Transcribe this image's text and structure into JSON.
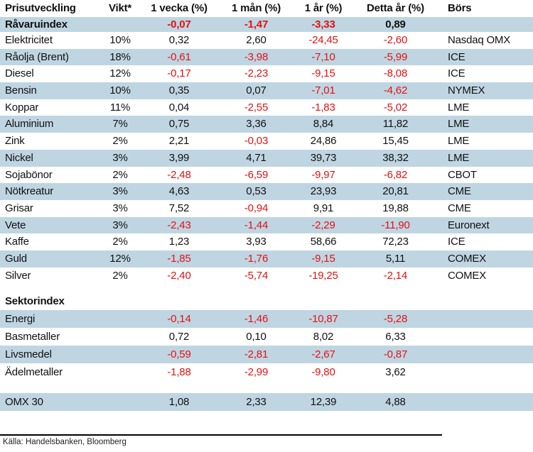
{
  "table": {
    "columns": {
      "label": "Prisutveckling",
      "vikt": "Vikt*",
      "week1": "1 vecka (%)",
      "month1": "1 mån (%)",
      "year1": "1 år (%)",
      "ytd": "Detta år (%)",
      "bors": "Börs"
    },
    "commodity_rows": [
      {
        "label": "Råvaruindex",
        "vikt": "",
        "w": "-0,07",
        "m": "-1,47",
        "y": "-3,33",
        "ytd": "0,89",
        "bors": "",
        "shaded": true,
        "bold": true
      },
      {
        "label": "Elektricitet",
        "vikt": "10%",
        "w": "0,32",
        "m": "2,60",
        "y": "-24,45",
        "ytd": "-2,60",
        "bors": "Nasdaq OMX",
        "shaded": false
      },
      {
        "label": "Råolja (Brent)",
        "vikt": "18%",
        "w": "-0,61",
        "m": "-3,98",
        "y": "-7,10",
        "ytd": "-5,99",
        "bors": "ICE",
        "shaded": true
      },
      {
        "label": "Diesel",
        "vikt": "12%",
        "w": "-0,17",
        "m": "-2,23",
        "y": "-9,15",
        "ytd": "-8,08",
        "bors": "ICE",
        "shaded": false
      },
      {
        "label": "Bensin",
        "vikt": "10%",
        "w": "0,35",
        "m": "0,07",
        "y": "-7,01",
        "ytd": "-4,62",
        "bors": "NYMEX",
        "shaded": true
      },
      {
        "label": "Koppar",
        "vikt": "11%",
        "w": "0,04",
        "m": "-2,55",
        "y": "-1,83",
        "ytd": "-5,02",
        "bors": "LME",
        "shaded": false
      },
      {
        "label": "Aluminium",
        "vikt": "7%",
        "w": "0,75",
        "m": "3,36",
        "y": "8,84",
        "ytd": "11,82",
        "bors": "LME",
        "shaded": true
      },
      {
        "label": "Zink",
        "vikt": "2%",
        "w": "2,21",
        "m": "-0,03",
        "y": "24,86",
        "ytd": "15,45",
        "bors": "LME",
        "shaded": false
      },
      {
        "label": "Nickel",
        "vikt": "3%",
        "w": "3,99",
        "m": "4,71",
        "y": "39,73",
        "ytd": "38,32",
        "bors": "LME",
        "shaded": true
      },
      {
        "label": "Sojabönor",
        "vikt": "2%",
        "w": "-2,48",
        "m": "-6,59",
        "y": "-9,97",
        "ytd": "-6,82",
        "bors": "CBOT",
        "shaded": false
      },
      {
        "label": "Nötkreatur",
        "vikt": "3%",
        "w": "4,63",
        "m": "0,53",
        "y": "23,93",
        "ytd": "20,81",
        "bors": "CME",
        "shaded": true
      },
      {
        "label": "Grisar",
        "vikt": "3%",
        "w": "7,52",
        "m": "-0,94",
        "y": "9,91",
        "ytd": "19,88",
        "bors": "CME",
        "shaded": false
      },
      {
        "label": "Vete",
        "vikt": "3%",
        "w": "-2,43",
        "m": "-1,44",
        "y": "-2,29",
        "ytd": "-11,90",
        "bors": "Euronext",
        "shaded": true
      },
      {
        "label": "Kaffe",
        "vikt": "2%",
        "w": "1,23",
        "m": "3,93",
        "y": "58,66",
        "ytd": "72,23",
        "bors": "ICE",
        "shaded": false
      },
      {
        "label": "Guld",
        "vikt": "12%",
        "w": "-1,85",
        "m": "-1,76",
        "y": "-9,15",
        "ytd": "5,11",
        "bors": "COMEX",
        "shaded": true
      },
      {
        "label": "Silver",
        "vikt": "2%",
        "w": "-2,40",
        "m": "-5,74",
        "y": "-19,25",
        "ytd": "-2,14",
        "bors": "COMEX",
        "shaded": false
      }
    ],
    "sector_header": "Sektorindex",
    "sector_rows": [
      {
        "label": "Energi",
        "vikt": "",
        "w": "-0,14",
        "m": "-1,46",
        "y": "-10,87",
        "ytd": "-5,28",
        "bors": "",
        "shaded": true
      },
      {
        "label": "Basmetaller",
        "vikt": "",
        "w": "0,72",
        "m": "0,10",
        "y": "8,02",
        "ytd": "6,33",
        "bors": "",
        "shaded": false
      },
      {
        "label": "Livsmedel",
        "vikt": "",
        "w": "-0,59",
        "m": "-2,81",
        "y": "-2,67",
        "ytd": "-0,87",
        "bors": "",
        "shaded": true
      },
      {
        "label": "Ädelmetaller",
        "vikt": "",
        "w": "-1,88",
        "m": "-2,99",
        "y": "-9,80",
        "ytd": "3,62",
        "bors": "",
        "shaded": false
      }
    ],
    "omx_row": {
      "label": "OMX 30",
      "vikt": "",
      "w": "1,08",
      "m": "2,33",
      "y": "12,39",
      "ytd": "4,88",
      "bors": "",
      "shaded": true
    }
  },
  "colors": {
    "band_blue": "#bfd5e2",
    "negative_red": "#e31212",
    "text_black": "#111111"
  },
  "footer": {
    "source": "Källa: Handelsbanken, Bloomberg"
  }
}
